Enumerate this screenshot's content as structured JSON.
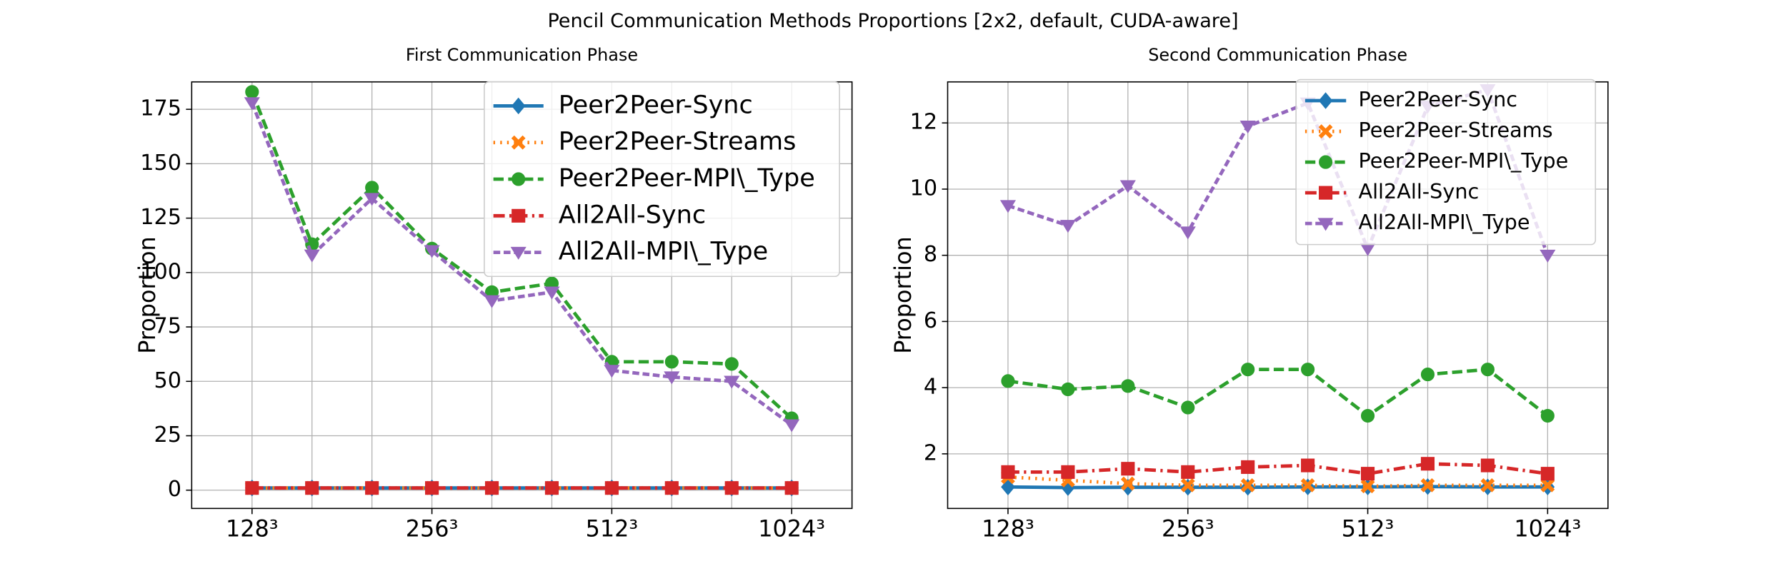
{
  "title": "Pencil Communication Methods Proportions [2x2, default, CUDA-aware]",
  "chart_data": [
    {
      "type": "line",
      "title": "First Communication Phase",
      "ylabel": "Proportion",
      "categories": [
        "128³",
        null,
        null,
        "256³",
        null,
        null,
        "512³",
        null,
        null,
        "1024³"
      ],
      "ylim": [
        -8.4,
        187.6
      ],
      "yticks": [
        0,
        25,
        50,
        75,
        100,
        125,
        150,
        175
      ],
      "grid": true,
      "legend": "upper right",
      "series": [
        {
          "name": "Peer2Peer-Sync",
          "color": "#1f77b4",
          "linestyle": "solid",
          "marker": "diamond",
          "values": [
            1,
            1,
            1,
            1,
            1,
            1,
            1,
            1,
            1,
            1
          ]
        },
        {
          "name": "Peer2Peer-Streams",
          "color": "#ff7f0e",
          "linestyle": "dotted",
          "marker": "x",
          "values": [
            1,
            1,
            1,
            1,
            1,
            1,
            1,
            1,
            1,
            1
          ]
        },
        {
          "name": "Peer2Peer-MPI\\_Type",
          "color": "#2ca02c",
          "linestyle": "dashed",
          "marker": "circle",
          "values": [
            183,
            113,
            139,
            111,
            91,
            95,
            59,
            59,
            58,
            33
          ]
        },
        {
          "name": "All2All-Sync",
          "color": "#d62728",
          "linestyle": "dashdot",
          "marker": "square",
          "values": [
            1,
            1,
            1,
            1,
            1,
            1,
            1,
            1,
            1,
            1
          ]
        },
        {
          "name": "All2All-MPI\\_Type",
          "color": "#9467bd",
          "linestyle": "longdash",
          "marker": "triangle-down",
          "values": [
            178,
            108,
            134,
            110,
            87,
            91,
            55,
            52,
            50,
            30
          ]
        }
      ]
    },
    {
      "type": "line",
      "title": "Second Communication Phase",
      "ylabel": "Proportion",
      "categories": [
        "128³",
        null,
        null,
        "256³",
        null,
        null,
        "512³",
        null,
        null,
        "1024³"
      ],
      "ylim": [
        0.35,
        13.24
      ],
      "yticks": [
        2,
        4,
        6,
        8,
        10,
        12
      ],
      "grid": true,
      "legend": "upper right",
      "series": [
        {
          "name": "Peer2Peer-Sync",
          "color": "#1f77b4",
          "linestyle": "solid",
          "marker": "diamond",
          "values": [
            1,
            0.98,
            0.99,
            0.99,
            0.99,
            1,
            1,
            1.01,
            1,
            1
          ]
        },
        {
          "name": "Peer2Peer-Streams",
          "color": "#ff7f0e",
          "linestyle": "dotted",
          "marker": "x",
          "values": [
            1.3,
            1.2,
            1.1,
            1.05,
            1.05,
            1.05,
            1.02,
            1.05,
            1.05,
            1.05
          ]
        },
        {
          "name": "Peer2Peer-MPI\\_Type",
          "color": "#2ca02c",
          "linestyle": "dashed",
          "marker": "circle",
          "values": [
            4.2,
            3.95,
            4.05,
            3.4,
            4.55,
            4.55,
            3.15,
            4.4,
            4.55,
            3.15
          ]
        },
        {
          "name": "All2All-Sync",
          "color": "#d62728",
          "linestyle": "dashdot",
          "marker": "square",
          "values": [
            1.45,
            1.45,
            1.55,
            1.45,
            1.6,
            1.65,
            1.4,
            1.7,
            1.65,
            1.4
          ]
        },
        {
          "name": "All2All-MPI\\_Type",
          "color": "#9467bd",
          "linestyle": "longdash",
          "marker": "triangle-down",
          "values": [
            9.5,
            8.9,
            10.1,
            8.7,
            11.9,
            12.6,
            8.2,
            12.5,
            13.0,
            8.0
          ]
        }
      ]
    }
  ]
}
